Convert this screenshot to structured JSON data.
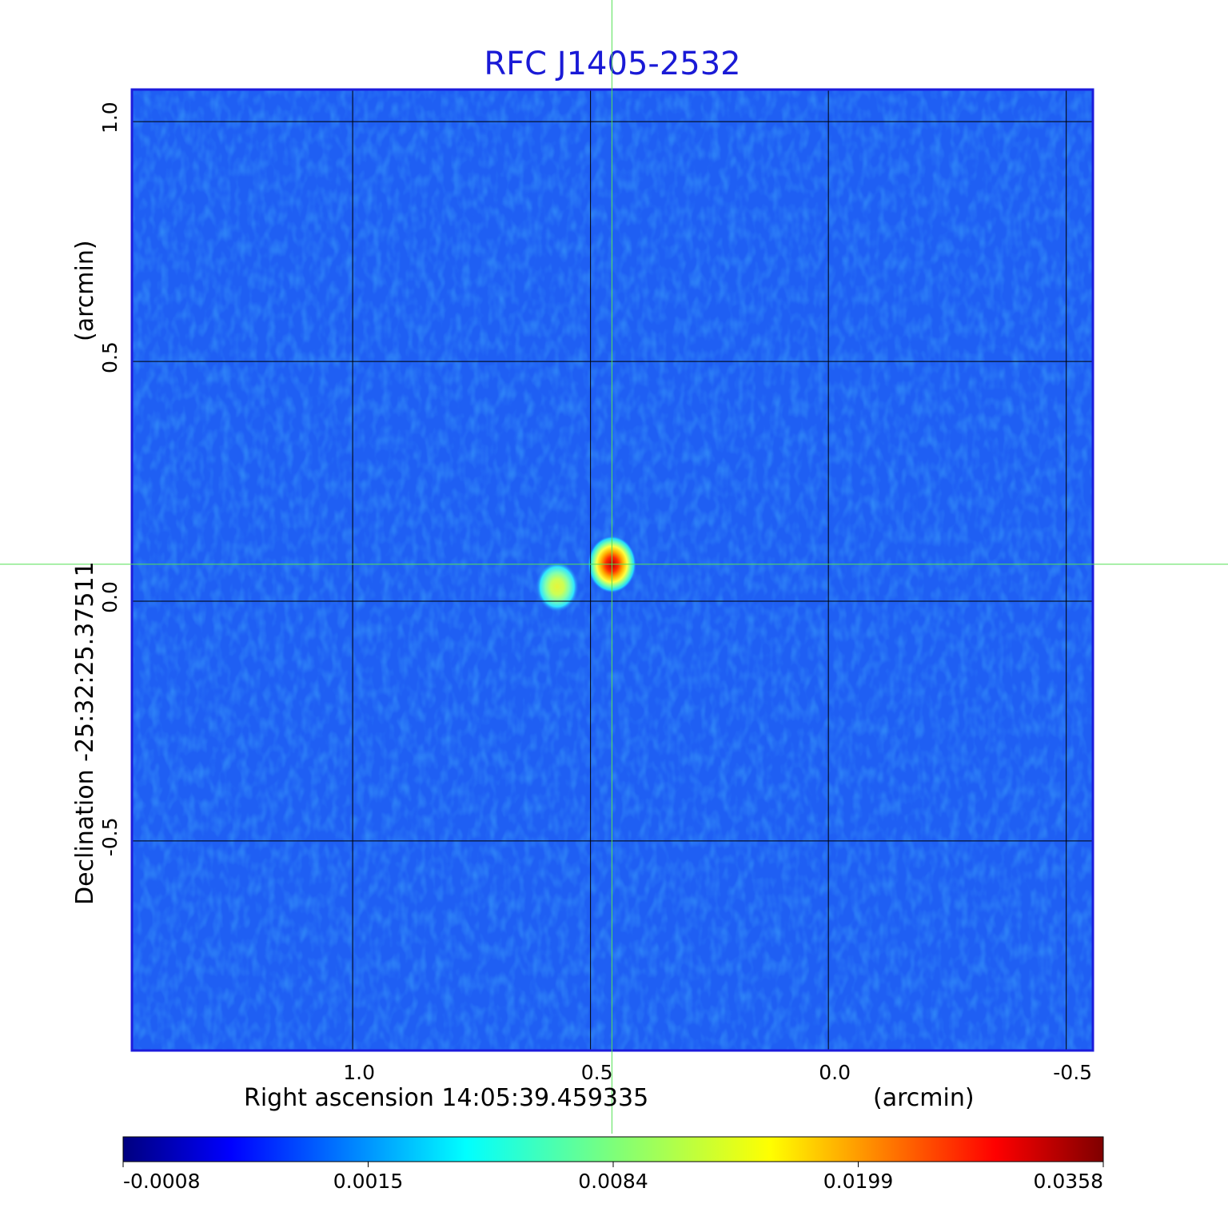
{
  "chart_data": {
    "type": "heatmap",
    "title": "RFC J1405-2532",
    "xlabel": "Right ascension  14:05:39.459335",
    "xunit": "(arcmin)",
    "ylabel": "Declination  -25:32:25.37511",
    "yunit": "(arcmin)",
    "x_ticks": [
      1.0,
      0.5,
      0.0,
      -0.5
    ],
    "x_tick_labels": [
      "1.0",
      "0.5",
      "0.0",
      "-0.5"
    ],
    "y_ticks": [
      1.0,
      0.5,
      0.0,
      -0.5
    ],
    "y_tick_labels": [
      "1.0",
      "0.5",
      "0.0",
      "-0.5"
    ],
    "xlim": [
      1.464,
      -0.556
    ],
    "ylim": [
      -0.937,
      1.067
    ],
    "grid": true,
    "crosshair": {
      "x": 0.455,
      "y": 0.077
    },
    "colorbar": {
      "labels": [
        "-0.0008",
        "0.0015",
        "0.0084",
        "0.0199",
        "0.0358"
      ],
      "min": -0.0008,
      "max": 0.0358,
      "colormap": "jet"
    },
    "sources": [
      {
        "x": 0.455,
        "y": 0.077,
        "peak": 0.0358
      },
      {
        "x": 0.57,
        "y": 0.03,
        "peak": 0.0125
      }
    ]
  },
  "colors": {
    "title": "#1a1ad6",
    "frame": "#1c1cdc",
    "grid": "#000000",
    "crosshair": "#55e055",
    "background_map": "#1e5cf2"
  }
}
